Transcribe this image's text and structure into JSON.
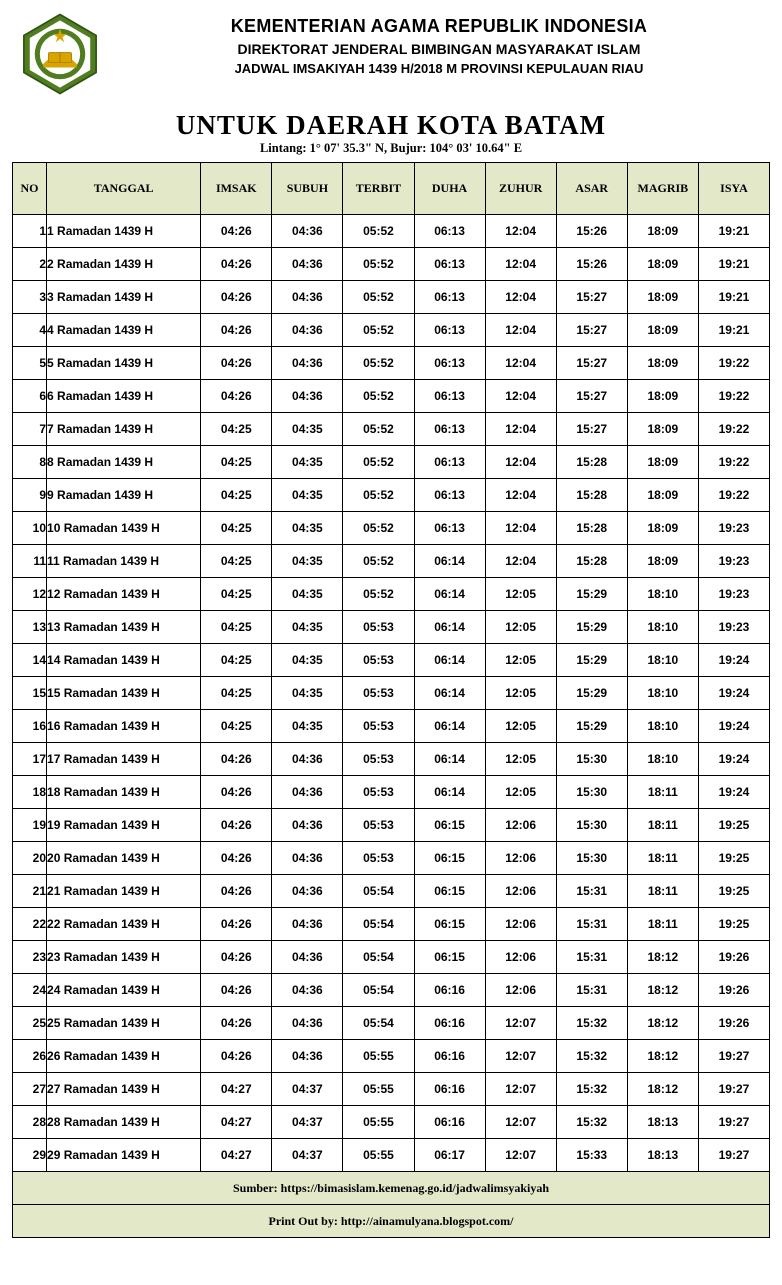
{
  "colors": {
    "header_bg": "#e2e8c8",
    "border": "#000000",
    "page_bg": "#ffffff",
    "logo_outer": "#4f7d1f",
    "logo_mid": "#ffffff",
    "logo_inner": "#4f7d1f",
    "logo_star": "#d9a400"
  },
  "header": {
    "line1": "KEMENTERIAN AGAMA REPUBLIK INDONESIA",
    "line2": "DIREKTORAT JENDERAL BIMBINGAN MASYARAKAT ISLAM",
    "line3": "JADWAL IMSAKIYAH 1439 H/2018 M PROVINSI KEPULAUAN RIAU"
  },
  "region": {
    "title": "UNTUK DAERAH KOTA BATAM",
    "coords": "Lintang: 1° 07' 35.3\" N, Bujur: 104° 03' 10.64\" E"
  },
  "columns": [
    "NO",
    "TANGGAL",
    "IMSAK",
    "SUBUH",
    "TERBIT",
    "DUHA",
    "ZUHUR",
    "ASAR",
    "MAGRIB",
    "ISYA"
  ],
  "rows": [
    {
      "no": 1,
      "tanggal": "1 Ramadan 1439 H",
      "t": [
        "04:26",
        "04:36",
        "05:52",
        "06:13",
        "12:04",
        "15:26",
        "18:09",
        "19:21"
      ]
    },
    {
      "no": 2,
      "tanggal": "2 Ramadan 1439 H",
      "t": [
        "04:26",
        "04:36",
        "05:52",
        "06:13",
        "12:04",
        "15:26",
        "18:09",
        "19:21"
      ]
    },
    {
      "no": 3,
      "tanggal": "3 Ramadan 1439 H",
      "t": [
        "04:26",
        "04:36",
        "05:52",
        "06:13",
        "12:04",
        "15:27",
        "18:09",
        "19:21"
      ]
    },
    {
      "no": 4,
      "tanggal": "4 Ramadan 1439 H",
      "t": [
        "04:26",
        "04:36",
        "05:52",
        "06:13",
        "12:04",
        "15:27",
        "18:09",
        "19:21"
      ]
    },
    {
      "no": 5,
      "tanggal": "5 Ramadan 1439 H",
      "t": [
        "04:26",
        "04:36",
        "05:52",
        "06:13",
        "12:04",
        "15:27",
        "18:09",
        "19:22"
      ]
    },
    {
      "no": 6,
      "tanggal": "6 Ramadan 1439 H",
      "t": [
        "04:26",
        "04:36",
        "05:52",
        "06:13",
        "12:04",
        "15:27",
        "18:09",
        "19:22"
      ]
    },
    {
      "no": 7,
      "tanggal": "7 Ramadan 1439 H",
      "t": [
        "04:25",
        "04:35",
        "05:52",
        "06:13",
        "12:04",
        "15:27",
        "18:09",
        "19:22"
      ]
    },
    {
      "no": 8,
      "tanggal": "8 Ramadan 1439 H",
      "t": [
        "04:25",
        "04:35",
        "05:52",
        "06:13",
        "12:04",
        "15:28",
        "18:09",
        "19:22"
      ]
    },
    {
      "no": 9,
      "tanggal": "9 Ramadan 1439 H",
      "t": [
        "04:25",
        "04:35",
        "05:52",
        "06:13",
        "12:04",
        "15:28",
        "18:09",
        "19:22"
      ]
    },
    {
      "no": 10,
      "tanggal": "10 Ramadan 1439 H",
      "t": [
        "04:25",
        "04:35",
        "05:52",
        "06:13",
        "12:04",
        "15:28",
        "18:09",
        "19:23"
      ]
    },
    {
      "no": 11,
      "tanggal": "11 Ramadan 1439 H",
      "t": [
        "04:25",
        "04:35",
        "05:52",
        "06:14",
        "12:04",
        "15:28",
        "18:09",
        "19:23"
      ]
    },
    {
      "no": 12,
      "tanggal": "12 Ramadan 1439 H",
      "t": [
        "04:25",
        "04:35",
        "05:52",
        "06:14",
        "12:05",
        "15:29",
        "18:10",
        "19:23"
      ]
    },
    {
      "no": 13,
      "tanggal": "13 Ramadan 1439 H",
      "t": [
        "04:25",
        "04:35",
        "05:53",
        "06:14",
        "12:05",
        "15:29",
        "18:10",
        "19:23"
      ]
    },
    {
      "no": 14,
      "tanggal": "14 Ramadan 1439 H",
      "t": [
        "04:25",
        "04:35",
        "05:53",
        "06:14",
        "12:05",
        "15:29",
        "18:10",
        "19:24"
      ]
    },
    {
      "no": 15,
      "tanggal": "15 Ramadan 1439 H",
      "t": [
        "04:25",
        "04:35",
        "05:53",
        "06:14",
        "12:05",
        "15:29",
        "18:10",
        "19:24"
      ]
    },
    {
      "no": 16,
      "tanggal": "16 Ramadan 1439 H",
      "t": [
        "04:25",
        "04:35",
        "05:53",
        "06:14",
        "12:05",
        "15:29",
        "18:10",
        "19:24"
      ]
    },
    {
      "no": 17,
      "tanggal": "17 Ramadan 1439 H",
      "t": [
        "04:26",
        "04:36",
        "05:53",
        "06:14",
        "12:05",
        "15:30",
        "18:10",
        "19:24"
      ]
    },
    {
      "no": 18,
      "tanggal": "18 Ramadan 1439 H",
      "t": [
        "04:26",
        "04:36",
        "05:53",
        "06:14",
        "12:05",
        "15:30",
        "18:11",
        "19:24"
      ]
    },
    {
      "no": 19,
      "tanggal": "19 Ramadan 1439 H",
      "t": [
        "04:26",
        "04:36",
        "05:53",
        "06:15",
        "12:06",
        "15:30",
        "18:11",
        "19:25"
      ]
    },
    {
      "no": 20,
      "tanggal": "20 Ramadan 1439 H",
      "t": [
        "04:26",
        "04:36",
        "05:53",
        "06:15",
        "12:06",
        "15:30",
        "18:11",
        "19:25"
      ]
    },
    {
      "no": 21,
      "tanggal": "21 Ramadan 1439 H",
      "t": [
        "04:26",
        "04:36",
        "05:54",
        "06:15",
        "12:06",
        "15:31",
        "18:11",
        "19:25"
      ]
    },
    {
      "no": 22,
      "tanggal": "22 Ramadan 1439 H",
      "t": [
        "04:26",
        "04:36",
        "05:54",
        "06:15",
        "12:06",
        "15:31",
        "18:11",
        "19:25"
      ]
    },
    {
      "no": 23,
      "tanggal": "23 Ramadan 1439 H",
      "t": [
        "04:26",
        "04:36",
        "05:54",
        "06:15",
        "12:06",
        "15:31",
        "18:12",
        "19:26"
      ]
    },
    {
      "no": 24,
      "tanggal": "24 Ramadan 1439 H",
      "t": [
        "04:26",
        "04:36",
        "05:54",
        "06:16",
        "12:06",
        "15:31",
        "18:12",
        "19:26"
      ]
    },
    {
      "no": 25,
      "tanggal": "25 Ramadan 1439 H",
      "t": [
        "04:26",
        "04:36",
        "05:54",
        "06:16",
        "12:07",
        "15:32",
        "18:12",
        "19:26"
      ]
    },
    {
      "no": 26,
      "tanggal": "26 Ramadan 1439 H",
      "t": [
        "04:26",
        "04:36",
        "05:55",
        "06:16",
        "12:07",
        "15:32",
        "18:12",
        "19:27"
      ]
    },
    {
      "no": 27,
      "tanggal": "27 Ramadan 1439 H",
      "t": [
        "04:27",
        "04:37",
        "05:55",
        "06:16",
        "12:07",
        "15:32",
        "18:12",
        "19:27"
      ]
    },
    {
      "no": 28,
      "tanggal": "28 Ramadan 1439 H",
      "t": [
        "04:27",
        "04:37",
        "05:55",
        "06:16",
        "12:07",
        "15:32",
        "18:13",
        "19:27"
      ]
    },
    {
      "no": 29,
      "tanggal": "29 Ramadan 1439 H",
      "t": [
        "04:27",
        "04:37",
        "05:55",
        "06:17",
        "12:07",
        "15:33",
        "18:13",
        "19:27"
      ]
    }
  ],
  "footer": {
    "source": "Sumber: https://bimasislam.kemenag.go.id/jadwalimsyakiyah",
    "printout": "Print Out by: http://ainamulyana.blogspot.com/"
  }
}
